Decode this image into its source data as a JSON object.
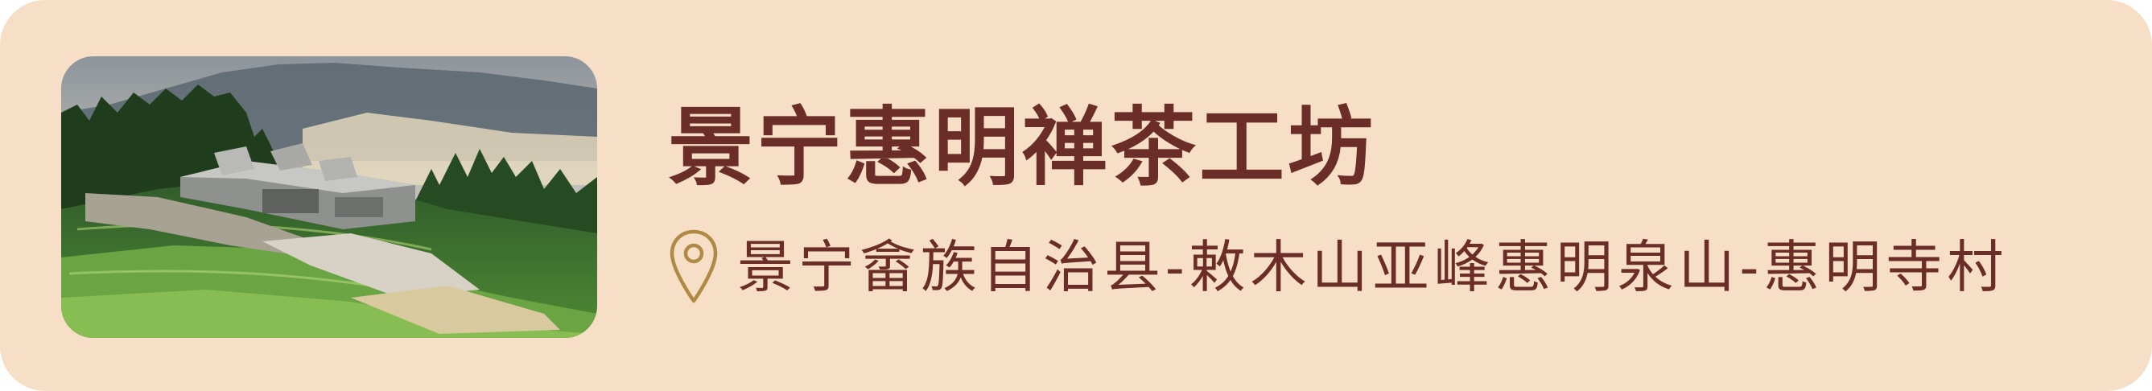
{
  "place": {
    "name": "景宁惠明禅茶工坊",
    "address": "景宁畲族自治县-敕木山亚峰惠明泉山-惠明寺村"
  },
  "icons": {
    "location": "location-pin-icon"
  },
  "colors": {
    "card_background": "#f6dfc6",
    "text": "#6b2d27",
    "pin_stroke": "#b08a45"
  }
}
